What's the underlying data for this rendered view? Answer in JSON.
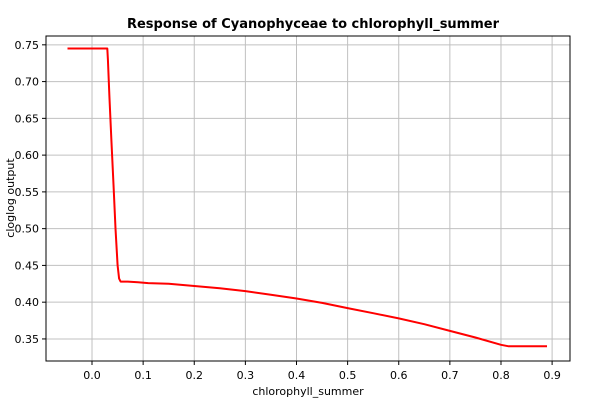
{
  "chart_data": {
    "type": "line",
    "title": "Response of Cyanophyceae to chlorophyll_summer",
    "xlabel": "chlorophyll_summer",
    "ylabel": "cloglog output",
    "xlim": [
      -0.09,
      0.935
    ],
    "ylim": [
      0.32,
      0.762
    ],
    "xticks": [
      0.0,
      0.1,
      0.2,
      0.3,
      0.4,
      0.5,
      0.6,
      0.7,
      0.8,
      0.9
    ],
    "xtick_labels": [
      "0.0",
      "0.1",
      "0.2",
      "0.3",
      "0.4",
      "0.5",
      "0.6",
      "0.7",
      "0.8",
      "0.9"
    ],
    "yticks": [
      0.35,
      0.4,
      0.45,
      0.5,
      0.55,
      0.6,
      0.65,
      0.7,
      0.75
    ],
    "ytick_labels": [
      "0.35",
      "0.40",
      "0.45",
      "0.50",
      "0.55",
      "0.60",
      "0.65",
      "0.70",
      "0.75"
    ],
    "grid": true,
    "series": [
      {
        "color": "#ff0000",
        "x": [
          -0.048,
          0.03,
          0.031,
          0.034,
          0.038,
          0.042,
          0.046,
          0.05,
          0.053,
          0.056,
          0.07,
          0.09,
          0.11,
          0.15,
          0.2,
          0.25,
          0.3,
          0.35,
          0.4,
          0.45,
          0.5,
          0.55,
          0.6,
          0.65,
          0.7,
          0.75,
          0.8,
          0.815,
          0.89
        ],
        "y": [
          0.745,
          0.745,
          0.73,
          0.68,
          0.62,
          0.56,
          0.5,
          0.45,
          0.432,
          0.428,
          0.428,
          0.427,
          0.426,
          0.425,
          0.422,
          0.419,
          0.415,
          0.41,
          0.405,
          0.399,
          0.392,
          0.385,
          0.378,
          0.37,
          0.361,
          0.352,
          0.342,
          0.34,
          0.34
        ]
      }
    ]
  }
}
